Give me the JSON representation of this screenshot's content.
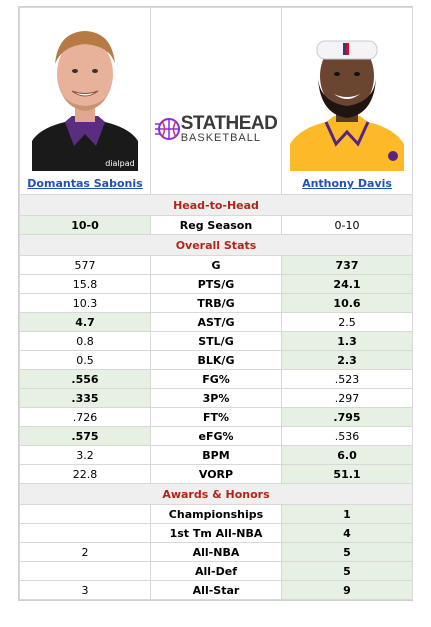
{
  "players": {
    "left": {
      "name": "Domantas Sabonis",
      "jersey_sponsor": "dialpad"
    },
    "right": {
      "name": "Anthony Davis"
    }
  },
  "logo": {
    "top": "STATHEAD",
    "bottom": "BASKETBALL"
  },
  "sections": {
    "h2h": "Head-to-Head",
    "overall": "Overall Stats",
    "awards": "Awards & Honors"
  },
  "h2h": {
    "label": "Reg Season",
    "left": "10-0",
    "right": "0-10",
    "winner": "left"
  },
  "overall_stats": [
    {
      "label": "G",
      "left": "577",
      "right": "737",
      "winner": "right"
    },
    {
      "label": "PTS/G",
      "left": "15.8",
      "right": "24.1",
      "winner": "right"
    },
    {
      "label": "TRB/G",
      "left": "10.3",
      "right": "10.6",
      "winner": "right"
    },
    {
      "label": "AST/G",
      "left": "4.7",
      "right": "2.5",
      "winner": "left"
    },
    {
      "label": "STL/G",
      "left": "0.8",
      "right": "1.3",
      "winner": "right"
    },
    {
      "label": "BLK/G",
      "left": "0.5",
      "right": "2.3",
      "winner": "right"
    },
    {
      "label": "FG%",
      "left": ".556",
      "right": ".523",
      "winner": "left"
    },
    {
      "label": "3P%",
      "left": ".335",
      "right": ".297",
      "winner": "left"
    },
    {
      "label": "FT%",
      "left": ".726",
      "right": ".795",
      "winner": "right"
    },
    {
      "label": "eFG%",
      "left": ".575",
      "right": ".536",
      "winner": "left"
    },
    {
      "label": "BPM",
      "left": "3.2",
      "right": "6.0",
      "winner": "right"
    },
    {
      "label": "VORP",
      "left": "22.8",
      "right": "51.1",
      "winner": "right"
    }
  ],
  "awards": [
    {
      "label": "Championships",
      "left": "",
      "right": "1",
      "winner": "right"
    },
    {
      "label": "1st Tm All-NBA",
      "left": "",
      "right": "4",
      "winner": "right"
    },
    {
      "label": "All-NBA",
      "left": "2",
      "right": "5",
      "winner": "right"
    },
    {
      "label": "All-Def",
      "left": "",
      "right": "5",
      "winner": "right"
    },
    {
      "label": "All-Star",
      "left": "3",
      "right": "9",
      "winner": "right"
    }
  ],
  "colors": {
    "win_bg": "#e6f0e3",
    "section_text": "#b3251a",
    "link": "#2150b8",
    "kings_purple": "#5a2d81",
    "lakers_gold": "#fdb927"
  }
}
